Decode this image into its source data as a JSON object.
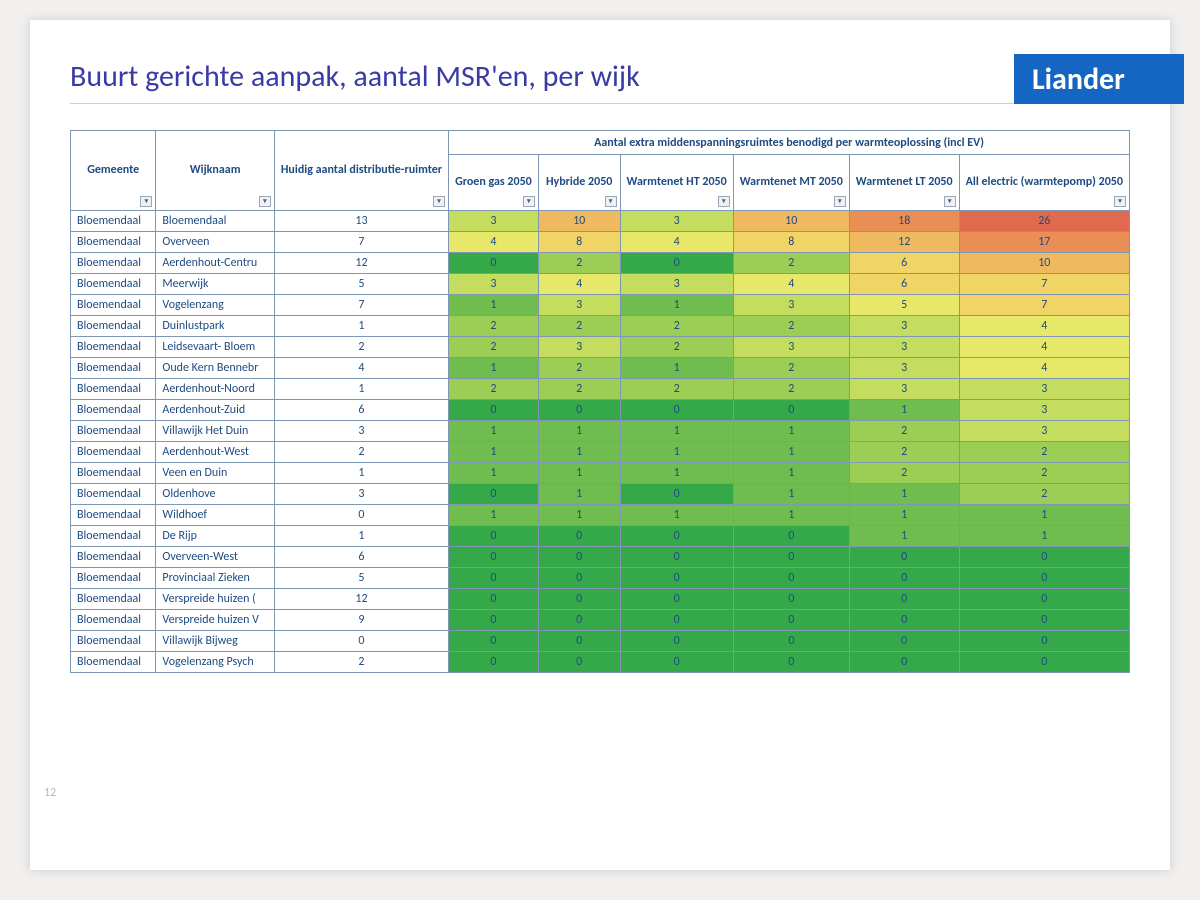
{
  "logo": "Liander",
  "title": "Buurt gerichte aanpak, aantal MSR'en, per wijk",
  "page_number": "12",
  "columns": {
    "gemeente": "Gemeente",
    "wijknaam": "Wijknaam",
    "huidig": "Huidig aantal distributie-ruimter",
    "group_header": "Aantal extra middenspanningsruimtes benodigd per warmteoplossing (incl EV)",
    "groen_gas": "Groen gas 2050",
    "hybride": "Hybride 2050",
    "wn_ht": "Warmtenet HT 2050",
    "wn_mt": "Warmtenet MT 2050",
    "wn_lt": "Warmtenet LT 2050",
    "all_elec": "All electric (warmtepomp) 2050"
  },
  "col_widths": {
    "gemeente": 115,
    "wijknaam": 150,
    "huidig": 78,
    "heat": 90,
    "all_elec": 120
  },
  "heat_palette": {
    "c0": "#35a94a",
    "c1": "#6fbd4e",
    "c2": "#9cce56",
    "c3": "#c5dd5f",
    "c4": "#e7e86a",
    "c5": "#f1d466",
    "c6": "#efb95f",
    "c7": "#e98f55",
    "c8": "#e06a4f"
  },
  "border_color": "#7e97b5",
  "text_color": "#1e4b82",
  "rows": [
    {
      "gemeente": "Bloemendaal",
      "wijk": "Bloemendaal",
      "huidig": 13,
      "vals": [
        3,
        10,
        3,
        10,
        18,
        26
      ]
    },
    {
      "gemeente": "Bloemendaal",
      "wijk": "Overveen",
      "huidig": 7,
      "vals": [
        4,
        8,
        4,
        8,
        12,
        17
      ]
    },
    {
      "gemeente": "Bloemendaal",
      "wijk": "Aerdenhout-Centru",
      "huidig": 12,
      "vals": [
        0,
        2,
        0,
        2,
        6,
        10
      ]
    },
    {
      "gemeente": "Bloemendaal",
      "wijk": "Meerwijk",
      "huidig": 5,
      "vals": [
        3,
        4,
        3,
        4,
        6,
        7
      ]
    },
    {
      "gemeente": "Bloemendaal",
      "wijk": "Vogelenzang",
      "huidig": 7,
      "vals": [
        1,
        3,
        1,
        3,
        5,
        7
      ]
    },
    {
      "gemeente": "Bloemendaal",
      "wijk": "Duinlustpark",
      "huidig": 1,
      "vals": [
        2,
        2,
        2,
        2,
        3,
        4
      ]
    },
    {
      "gemeente": "Bloemendaal",
      "wijk": "Leidsevaart- Bloem",
      "huidig": 2,
      "vals": [
        2,
        3,
        2,
        3,
        3,
        4
      ]
    },
    {
      "gemeente": "Bloemendaal",
      "wijk": "Oude Kern Bennebr",
      "huidig": 4,
      "vals": [
        1,
        2,
        1,
        2,
        3,
        4
      ]
    },
    {
      "gemeente": "Bloemendaal",
      "wijk": "Aerdenhout-Noord",
      "huidig": 1,
      "vals": [
        2,
        2,
        2,
        2,
        3,
        3
      ]
    },
    {
      "gemeente": "Bloemendaal",
      "wijk": "Aerdenhout-Zuid",
      "huidig": 6,
      "vals": [
        0,
        0,
        0,
        0,
        1,
        3
      ]
    },
    {
      "gemeente": "Bloemendaal",
      "wijk": "Villawijk Het Duin",
      "huidig": 3,
      "vals": [
        1,
        1,
        1,
        1,
        2,
        3
      ]
    },
    {
      "gemeente": "Bloemendaal",
      "wijk": "Aerdenhout-West",
      "huidig": 2,
      "vals": [
        1,
        1,
        1,
        1,
        2,
        2
      ]
    },
    {
      "gemeente": "Bloemendaal",
      "wijk": "Veen en Duin",
      "huidig": 1,
      "vals": [
        1,
        1,
        1,
        1,
        2,
        2
      ]
    },
    {
      "gemeente": "Bloemendaal",
      "wijk": "Oldenhove",
      "huidig": 3,
      "vals": [
        0,
        1,
        0,
        1,
        1,
        2
      ]
    },
    {
      "gemeente": "Bloemendaal",
      "wijk": "Wildhoef",
      "huidig": 0,
      "vals": [
        1,
        1,
        1,
        1,
        1,
        1
      ]
    },
    {
      "gemeente": "Bloemendaal",
      "wijk": "De Rijp",
      "huidig": 1,
      "vals": [
        0,
        0,
        0,
        0,
        1,
        1
      ]
    },
    {
      "gemeente": "Bloemendaal",
      "wijk": "Overveen-West",
      "huidig": 6,
      "vals": [
        0,
        0,
        0,
        0,
        0,
        0
      ]
    },
    {
      "gemeente": "Bloemendaal",
      "wijk": "Provinciaal Zieken",
      "huidig": 5,
      "vals": [
        0,
        0,
        0,
        0,
        0,
        0
      ]
    },
    {
      "gemeente": "Bloemendaal",
      "wijk": "Verspreide huizen (",
      "huidig": 12,
      "vals": [
        0,
        0,
        0,
        0,
        0,
        0
      ]
    },
    {
      "gemeente": "Bloemendaal",
      "wijk": "Verspreide huizen V",
      "huidig": 9,
      "vals": [
        0,
        0,
        0,
        0,
        0,
        0
      ]
    },
    {
      "gemeente": "Bloemendaal",
      "wijk": "Villawijk Bijweg",
      "huidig": 0,
      "vals": [
        0,
        0,
        0,
        0,
        0,
        0
      ]
    },
    {
      "gemeente": "Bloemendaal",
      "wijk": "Vogelenzang Psych",
      "huidig": 2,
      "vals": [
        0,
        0,
        0,
        0,
        0,
        0
      ]
    }
  ]
}
